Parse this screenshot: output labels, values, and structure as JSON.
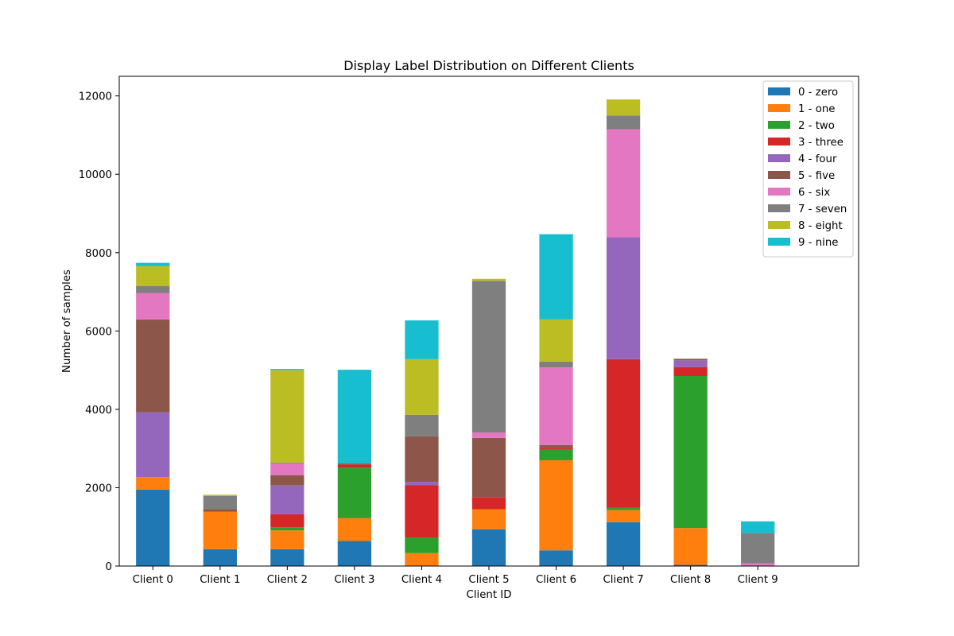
{
  "chart_data": {
    "type": "bar",
    "stacked": true,
    "title": "Display Label Distribution on Different Clients",
    "xlabel": "Client ID",
    "ylabel": "Number of samples",
    "categories": [
      "Client 0",
      "Client 1",
      "Client 2",
      "Client 3",
      "Client 4",
      "Client 5",
      "Client 6",
      "Client 7",
      "Client 8",
      "Client 9"
    ],
    "xlim": [
      -0.5,
      10.5
    ],
    "ylim": [
      0,
      12500
    ],
    "yticks": [
      0,
      2000,
      4000,
      6000,
      8000,
      10000,
      12000
    ],
    "grid": false,
    "legend_position": "top-right",
    "series": [
      {
        "name": "0 - zero",
        "color": "#1f77b4",
        "values": [
          1950,
          430,
          430,
          640,
          0,
          940,
          400,
          1120,
          30,
          0
        ]
      },
      {
        "name": "1 - one",
        "color": "#ff7f0e",
        "values": [
          320,
          960,
          480,
          580,
          330,
          510,
          2300,
          310,
          940,
          0
        ]
      },
      {
        "name": "2 - two",
        "color": "#2ca02c",
        "values": [
          0,
          0,
          80,
          1290,
          400,
          0,
          270,
          60,
          3880,
          0
        ]
      },
      {
        "name": "3 - three",
        "color": "#d62728",
        "values": [
          0,
          0,
          330,
          80,
          1330,
          310,
          40,
          3790,
          230,
          0
        ]
      },
      {
        "name": "4 - four",
        "color": "#9467bd",
        "values": [
          1650,
          0,
          750,
          0,
          90,
          0,
          0,
          3110,
          170,
          0
        ]
      },
      {
        "name": "5 - five",
        "color": "#8c564b",
        "values": [
          2370,
          60,
          250,
          30,
          1160,
          1510,
          80,
          0,
          40,
          0
        ]
      },
      {
        "name": "6 - six",
        "color": "#e377c2",
        "values": [
          680,
          0,
          300,
          0,
          0,
          140,
          1980,
          2760,
          0,
          70
        ]
      },
      {
        "name": "7 - seven",
        "color": "#7f7f7f",
        "values": [
          180,
          340,
          20,
          0,
          550,
          3870,
          150,
          350,
          0,
          770
        ]
      },
      {
        "name": "8 - eight",
        "color": "#bcbd22",
        "values": [
          510,
          30,
          2360,
          0,
          1420,
          50,
          1080,
          410,
          0,
          0
        ]
      },
      {
        "name": "9 - nine",
        "color": "#17becf",
        "values": [
          80,
          0,
          30,
          2390,
          990,
          0,
          2170,
          0,
          0,
          300
        ]
      }
    ]
  }
}
